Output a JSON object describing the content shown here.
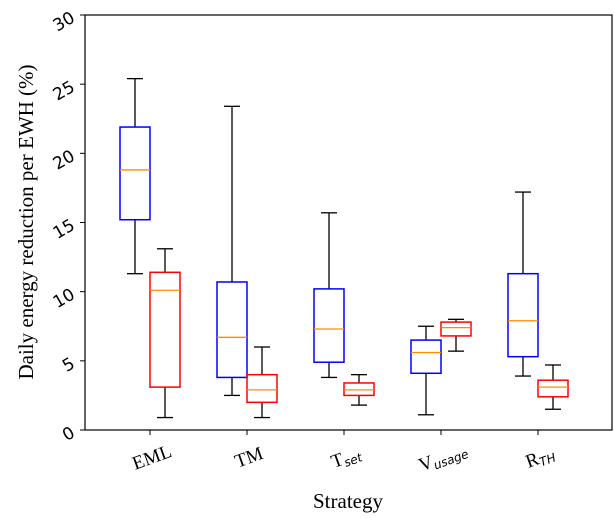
{
  "chart_data": {
    "type": "boxplot",
    "xlabel": "Strategy",
    "ylabel": "Daily energy reduction per EWH (%)",
    "ylim": [
      0,
      30
    ],
    "yticks": [
      "0",
      "5",
      "10",
      "15",
      "20",
      "25",
      "30"
    ],
    "categories": [
      {
        "main": "EML",
        "sub": ""
      },
      {
        "main": "TM",
        "sub": ""
      },
      {
        "main": "T",
        "sub": "set"
      },
      {
        "main": "V",
        "sub": "usage"
      },
      {
        "main": "R",
        "sub": "TH"
      }
    ],
    "colors": {
      "series_1": "#0000ff",
      "series_2": "#ff0000",
      "median": "#ff8c00",
      "whisker": "#000000"
    },
    "series": [
      {
        "color": "#0000ff",
        "boxes": [
          {
            "min": 11.3,
            "q1": 15.2,
            "median": 18.8,
            "q3": 21.9,
            "max": 25.4
          },
          {
            "min": 2.5,
            "q1": 3.8,
            "median": 6.7,
            "q3": 10.7,
            "max": 23.4
          },
          {
            "min": 3.8,
            "q1": 4.9,
            "median": 7.3,
            "q3": 10.2,
            "max": 15.7
          },
          {
            "min": 1.1,
            "q1": 4.1,
            "median": 5.6,
            "q3": 6.5,
            "max": 7.5
          },
          {
            "min": 3.9,
            "q1": 5.3,
            "median": 7.9,
            "q3": 11.3,
            "max": 17.2
          }
        ]
      },
      {
        "color": "#ff0000",
        "boxes": [
          {
            "min": 0.9,
            "q1": 3.1,
            "median": 10.1,
            "q3": 11.4,
            "max": 13.1
          },
          {
            "min": 0.9,
            "q1": 2.0,
            "median": 2.9,
            "q3": 4.0,
            "max": 6.0
          },
          {
            "min": 1.8,
            "q1": 2.5,
            "median": 2.9,
            "q3": 3.4,
            "max": 4.0
          },
          {
            "min": 5.7,
            "q1": 6.8,
            "median": 7.4,
            "q3": 7.8,
            "max": 8.0
          },
          {
            "min": 1.5,
            "q1": 2.4,
            "median": 3.1,
            "q3": 3.6,
            "max": 4.7
          }
        ]
      }
    ]
  }
}
